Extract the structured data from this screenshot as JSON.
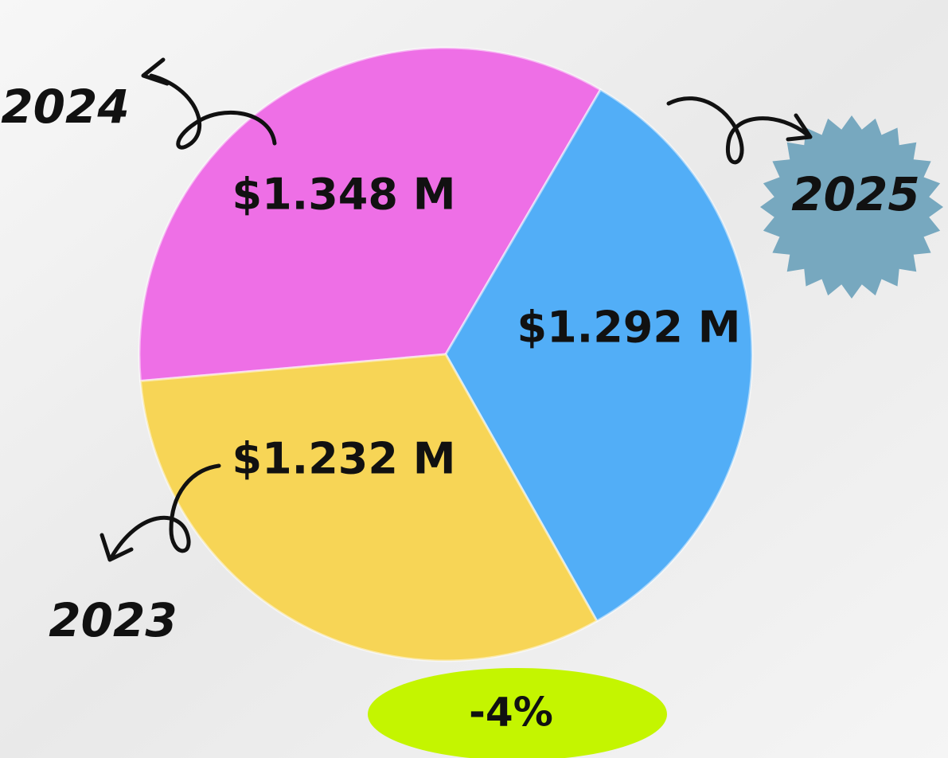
{
  "chart_data": {
    "type": "pie",
    "categories": [
      "2024",
      "2025",
      "2023"
    ],
    "values": [
      1.348,
      1.292,
      1.232
    ],
    "value_labels": [
      "$1.348 M",
      "$1.292 M",
      "$1.232 M"
    ],
    "colors": [
      "#ee6fe6",
      "#52aef7",
      "#f7d556"
    ],
    "annotations": [
      "-4%"
    ]
  }
}
